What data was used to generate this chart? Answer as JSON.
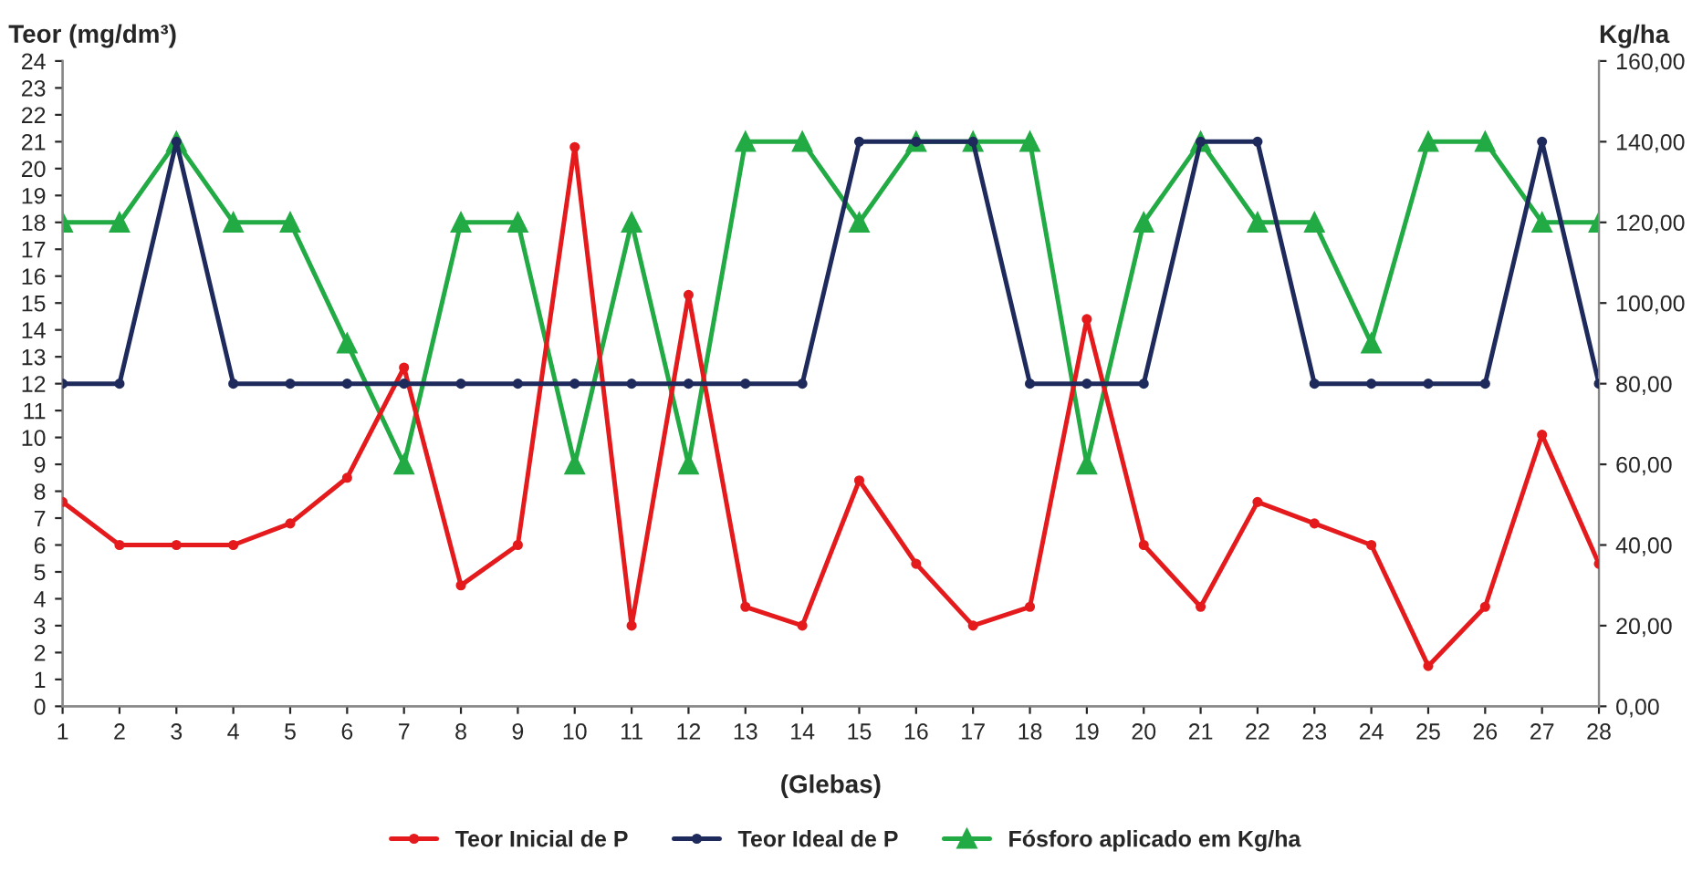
{
  "chart_data": {
    "type": "line",
    "ylabel": "Teor (mg/dm³)",
    "y2label": "Kg/ha",
    "xlabel": "(Glebas)",
    "x": [
      1,
      2,
      3,
      4,
      5,
      6,
      7,
      8,
      9,
      10,
      11,
      12,
      13,
      14,
      15,
      16,
      17,
      18,
      19,
      20,
      21,
      22,
      23,
      24,
      25,
      26,
      27,
      28
    ],
    "series": [
      {
        "name": "Teor Inicial de P",
        "color": "#e41a1c",
        "marker": "circle",
        "values": [
          7.6,
          6,
          6,
          6,
          6.8,
          8.5,
          12.6,
          4.5,
          6,
          20.8,
          3,
          15.3,
          3.7,
          3,
          8.4,
          5.3,
          3,
          3.7,
          14.4,
          6,
          3.7,
          7.6,
          6.8,
          6,
          1.5,
          3.7,
          10.1,
          5.3
        ]
      },
      {
        "name": "Teor Ideal de P",
        "color": "#1f2a5c",
        "marker": "circle",
        "values": [
          12,
          12,
          21,
          12,
          12,
          12,
          12,
          12,
          12,
          12,
          12,
          12,
          12,
          12,
          21,
          21,
          21,
          12,
          12,
          12,
          21,
          21,
          12,
          12,
          12,
          12,
          21,
          12
        ]
      },
      {
        "name": "Fósforo aplicado em Kg/ha",
        "color": "#22aa44",
        "marker": "triangle",
        "axis": "y2",
        "values": [
          120,
          120,
          140,
          120,
          120,
          90,
          60,
          120,
          120,
          60,
          120,
          60,
          140,
          140,
          120,
          140,
          140,
          140,
          60,
          120,
          140,
          120,
          120,
          90,
          140,
          140,
          120,
          120
        ]
      }
    ],
    "xlim": [
      1,
      28
    ],
    "xticks": [
      1,
      2,
      3,
      4,
      5,
      6,
      7,
      8,
      9,
      10,
      11,
      12,
      13,
      14,
      15,
      16,
      17,
      18,
      19,
      20,
      21,
      22,
      23,
      24,
      25,
      26,
      27,
      28
    ],
    "ylim": [
      0,
      24
    ],
    "yticks": [
      0,
      1,
      2,
      3,
      4,
      5,
      6,
      7,
      8,
      9,
      10,
      11,
      12,
      13,
      14,
      15,
      16,
      17,
      18,
      19,
      20,
      21,
      22,
      23,
      24
    ],
    "y2lim": [
      0,
      160
    ],
    "y2ticks": [
      {
        "value": 0,
        "label": "0,00"
      },
      {
        "value": 20,
        "label": "20,00"
      },
      {
        "value": 40,
        "label": "40,00"
      },
      {
        "value": 60,
        "label": "60,00"
      },
      {
        "value": 80,
        "label": "80,00"
      },
      {
        "value": 100,
        "label": "100,00"
      },
      {
        "value": 120,
        "label": "120,00"
      },
      {
        "value": 140,
        "label": "140,00"
      },
      {
        "value": 160,
        "label": "160,00"
      }
    ],
    "grid": false,
    "legend": "bottom",
    "line_style": "solid"
  }
}
